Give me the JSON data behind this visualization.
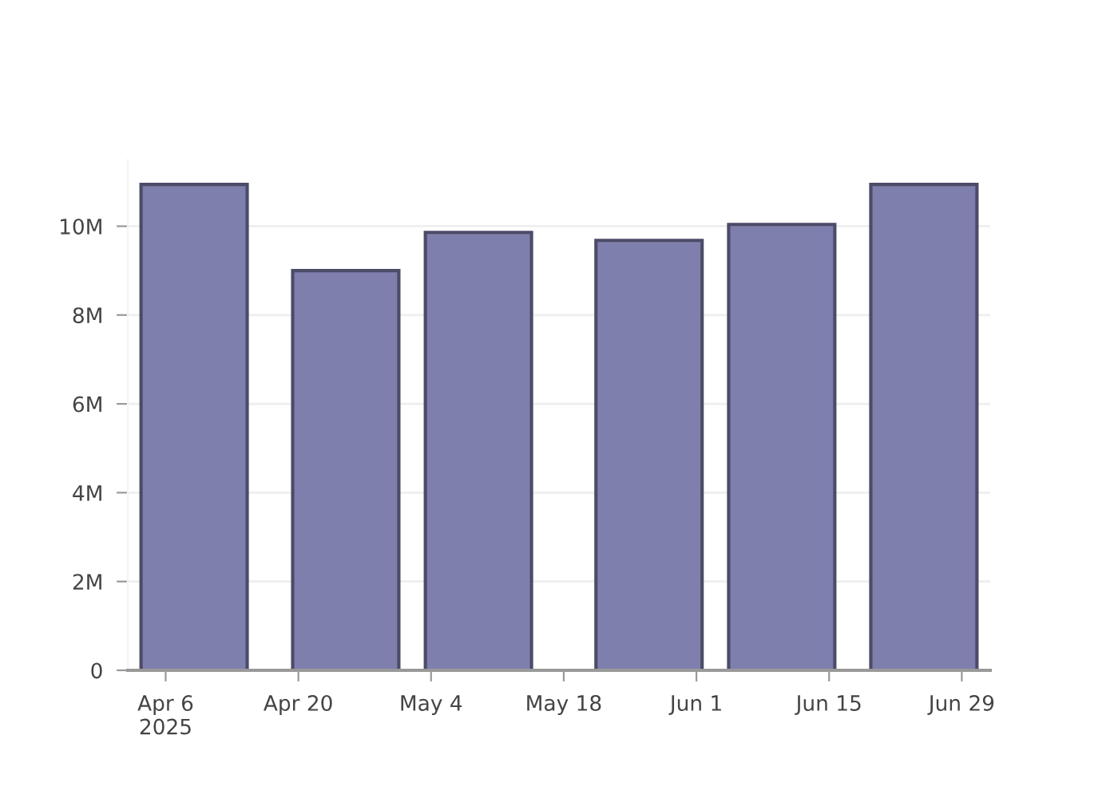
{
  "chart_data": {
    "type": "bar",
    "x": [
      "2025-04-09",
      "2025-04-25",
      "2025-05-09",
      "2025-05-27",
      "2025-06-10",
      "2025-06-25"
    ],
    "values": [
      10940000,
      9000000,
      9860000,
      9680000,
      10040000,
      10940000
    ],
    "color": "#7f7fae",
    "xlim": [
      "2025-04-02",
      "2025-07-02"
    ],
    "xticks": [
      {
        "value": "2025-04-06",
        "label": "Apr 6\n2025"
      },
      {
        "value": "2025-04-20",
        "label": "Apr 20"
      },
      {
        "value": "2025-05-04",
        "label": "May 4"
      },
      {
        "value": "2025-05-18",
        "label": "May 18"
      },
      {
        "value": "2025-06-01",
        "label": "Jun 1"
      },
      {
        "value": "2025-06-15",
        "label": "Jun 15"
      },
      {
        "value": "2025-06-29",
        "label": "Jun 29"
      }
    ],
    "ylim": [
      0,
      11500000
    ],
    "yticks": [
      0,
      {
        "value": 2000000,
        "label": "2M"
      },
      {
        "value": 4000000,
        "label": "4M"
      },
      {
        "value": 6000000,
        "label": "6M"
      },
      {
        "value": 8000000,
        "label": "8M"
      },
      {
        "value": 10000000,
        "label": "10M"
      }
    ],
    "grid": "y"
  }
}
